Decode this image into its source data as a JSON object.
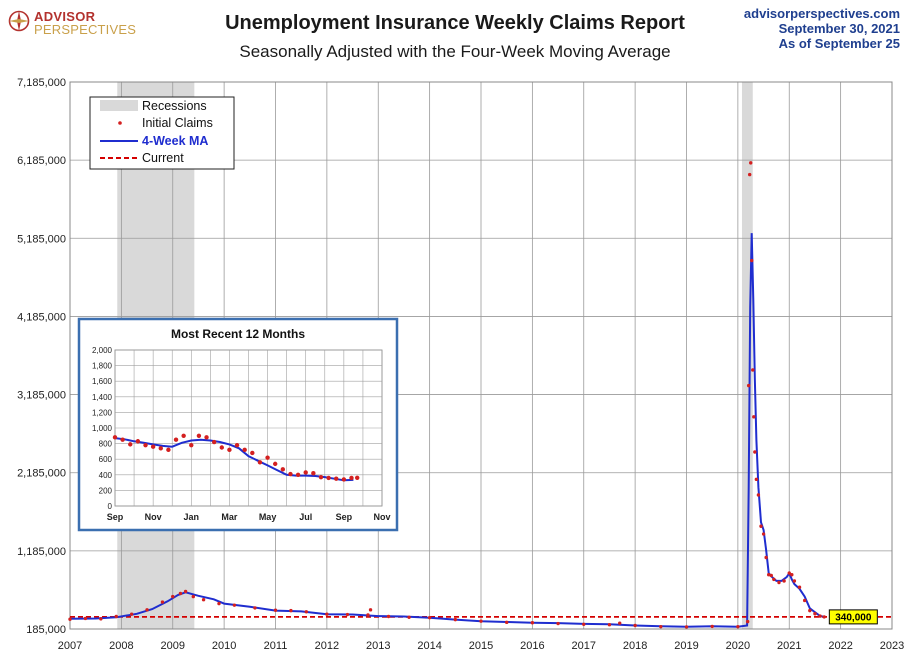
{
  "header": {
    "logo_line1": "ADVISOR",
    "logo_line2": "PERSPECTIVES",
    "title": "Unemployment Insurance Weekly Claims Report",
    "subtitle": "Seasonally Adjusted with the Four-Week Moving Average",
    "source_site": "advisorperspectives.com",
    "source_date": "September 30, 2021",
    "as_of": "As of September 25"
  },
  "colors": {
    "recession": "#d9d9d9",
    "initial_claims": "#d42020",
    "moving_average": "#1f2dcf",
    "current_line": "#d40000",
    "current_label_bg": "#ffff00",
    "inset_border": "#3b6fb0"
  },
  "chart_data": [
    {
      "type": "line",
      "title": "Unemployment Insurance Weekly Claims Report",
      "subtitle": "Seasonally Adjusted with the Four-Week Moving Average",
      "y_ticks": [
        "7,185,000",
        "6,185,000",
        "5,185,000",
        "4,185,000",
        "3,185,000",
        "2,185,000",
        "1,185,000",
        "185,000"
      ],
      "ylim": [
        185000,
        7185000
      ],
      "x_ticks": [
        "2007",
        "2008",
        "2009",
        "2010",
        "2011",
        "2012",
        "2013",
        "2014",
        "2015",
        "2016",
        "2017",
        "2018",
        "2019",
        "2020",
        "2021",
        "2022",
        "2023"
      ],
      "xlim": [
        2007,
        2023
      ],
      "grid": true,
      "legend_position": "top-left",
      "legend": [
        "Recessions",
        "Initial Claims",
        "4-Week MA",
        "Current"
      ],
      "recessions": [
        [
          2007.92,
          2009.42
        ],
        [
          2020.08,
          2020.29
        ]
      ],
      "current_value": 340000,
      "current_label": "340,000",
      "series": [
        {
          "name": "4-Week MA",
          "x": [
            2007.0,
            2007.5,
            2007.9,
            2008.3,
            2008.6,
            2008.9,
            2009.1,
            2009.25,
            2009.5,
            2009.8,
            2010.0,
            2010.5,
            2011.0,
            2011.5,
            2012.0,
            2012.5,
            2013.0,
            2013.5,
            2014.0,
            2014.5,
            2015.0,
            2015.5,
            2016.0,
            2016.5,
            2017.0,
            2017.5,
            2018.0,
            2018.5,
            2019.0,
            2019.5,
            2020.0,
            2020.18,
            2020.21,
            2020.24,
            2020.27,
            2020.3,
            2020.33,
            2020.36,
            2020.4,
            2020.45,
            2020.5,
            2020.55,
            2020.6,
            2020.65,
            2020.7,
            2020.75,
            2020.85,
            2020.95,
            2021.0,
            2021.05,
            2021.1,
            2021.2,
            2021.3,
            2021.4,
            2021.5,
            2021.6,
            2021.7
          ],
          "values": [
            315000,
            320000,
            335000,
            380000,
            440000,
            540000,
            620000,
            655000,
            610000,
            565000,
            510000,
            470000,
            420000,
            410000,
            375000,
            370000,
            350000,
            345000,
            330000,
            305000,
            285000,
            275000,
            265000,
            260000,
            250000,
            245000,
            230000,
            220000,
            215000,
            220000,
            215000,
            230000,
            2000000,
            4300000,
            5250000,
            4400000,
            3400000,
            2600000,
            2000000,
            1550000,
            1450000,
            1200000,
            900000,
            860000,
            830000,
            800000,
            800000,
            850000,
            900000,
            820000,
            760000,
            700000,
            600000,
            450000,
            400000,
            350000,
            340000
          ]
        },
        {
          "name": "Initial Claims",
          "x": [
            2007.0,
            2007.3,
            2007.6,
            2007.9,
            2008.2,
            2008.5,
            2008.8,
            2009.0,
            2009.15,
            2009.25,
            2009.4,
            2009.6,
            2009.9,
            2010.2,
            2010.6,
            2011.0,
            2011.3,
            2011.6,
            2012.0,
            2012.4,
            2012.8,
            2012.85,
            2013.2,
            2013.6,
            2014.0,
            2014.5,
            2015.0,
            2015.5,
            2016.0,
            2016.5,
            2017.0,
            2017.5,
            2017.7,
            2018.0,
            2018.5,
            2019.0,
            2019.5,
            2020.0,
            2020.19,
            2020.21,
            2020.23,
            2020.25,
            2020.27,
            2020.29,
            2020.31,
            2020.33,
            2020.36,
            2020.4,
            2020.45,
            2020.5,
            2020.55,
            2020.6,
            2020.65,
            2020.7,
            2020.8,
            2020.9,
            2021.0,
            2021.05,
            2021.1,
            2021.2,
            2021.3,
            2021.4,
            2021.5,
            2021.6,
            2021.68
          ],
          "values": [
            310000,
            320000,
            315000,
            345000,
            375000,
            430000,
            530000,
            600000,
            640000,
            665000,
            600000,
            560000,
            510000,
            490000,
            455000,
            425000,
            420000,
            405000,
            375000,
            370000,
            365000,
            430000,
            345000,
            335000,
            330000,
            305000,
            285000,
            270000,
            265000,
            255000,
            245000,
            240000,
            260000,
            230000,
            215000,
            212000,
            218000,
            215000,
            280000,
            3300000,
            6000000,
            6150000,
            4900000,
            3500000,
            2900000,
            2450000,
            2100000,
            1900000,
            1500000,
            1400000,
            1100000,
            880000,
            870000,
            820000,
            780000,
            800000,
            900000,
            880000,
            800000,
            720000,
            550000,
            420000,
            380000,
            350000,
            340000
          ]
        }
      ]
    },
    {
      "type": "line",
      "title": "Most Recent 12 Months",
      "y_ticks": [
        "2,000",
        "1,800",
        "1,600",
        "1,400",
        "1,200",
        "1,000",
        "800",
        "600",
        "400",
        "200",
        "0"
      ],
      "ylim": [
        0,
        2000
      ],
      "x_ticks": [
        "Sep",
        "Nov",
        "Jan",
        "Mar",
        "May",
        "Jul",
        "Sep",
        "Nov"
      ],
      "xlim": [
        0,
        14
      ],
      "grid": true,
      "series": [
        {
          "name": "4-Week MA",
          "x": [
            0,
            0.5,
            1,
            1.5,
            2,
            2.5,
            3,
            3.5,
            4,
            4.5,
            5,
            5.5,
            6,
            6.5,
            7,
            7.5,
            8,
            8.5,
            9,
            9.5,
            10,
            10.5,
            11,
            11.5,
            12,
            12.5
          ],
          "values": [
            870,
            855,
            830,
            810,
            790,
            770,
            760,
            810,
            840,
            850,
            840,
            820,
            790,
            740,
            640,
            580,
            520,
            460,
            400,
            390,
            390,
            385,
            370,
            350,
            330,
            335
          ]
        },
        {
          "name": "Initial Claims",
          "x": [
            0,
            0.4,
            0.8,
            1.2,
            1.6,
            2,
            2.4,
            2.8,
            3.2,
            3.6,
            4,
            4.4,
            4.8,
            5.2,
            5.6,
            6,
            6.4,
            6.8,
            7.2,
            7.6,
            8,
            8.4,
            8.8,
            9.2,
            9.6,
            10,
            10.4,
            10.8,
            11.2,
            11.6,
            12,
            12.4,
            12.7
          ],
          "values": [
            880,
            850,
            790,
            830,
            780,
            760,
            740,
            720,
            850,
            900,
            780,
            900,
            880,
            820,
            750,
            720,
            780,
            720,
            680,
            560,
            620,
            540,
            470,
            410,
            400,
            430,
            420,
            370,
            360,
            350,
            340,
            360,
            362
          ]
        }
      ]
    }
  ]
}
